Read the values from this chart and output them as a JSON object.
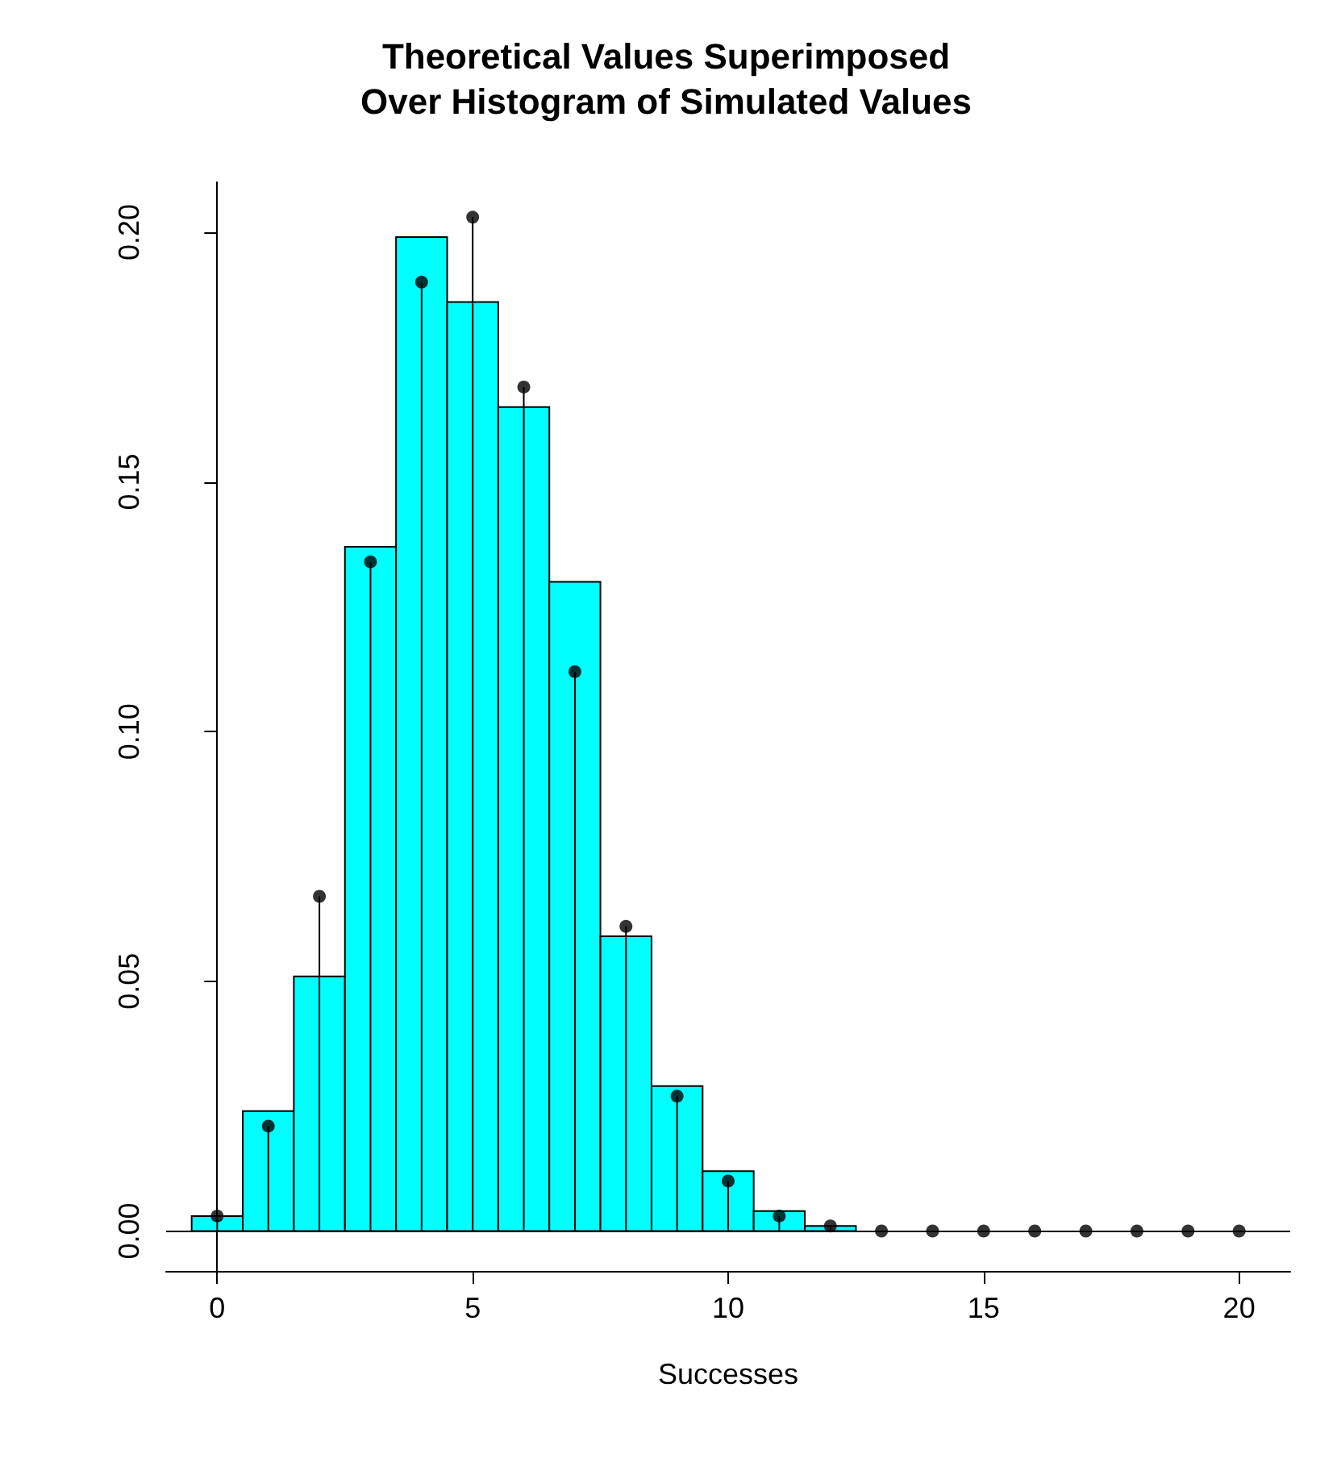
{
  "chart_data": {
    "type": "histogram",
    "title": "Theoretical Values Superimposed\nOver Histogram of Simulated Values",
    "xlabel": "Successes",
    "bins": [
      -0.5,
      0.5,
      1.5,
      2.5,
      3.5,
      4.5,
      5.5,
      6.5,
      7.5,
      8.5,
      9.5,
      10.5,
      11.5,
      12.5
    ],
    "series": [
      {
        "color": "#00ffff",
        "values": [
          0.003,
          0.024,
          0.051,
          0.137,
          0.199,
          0.186,
          0.165,
          0.13,
          0.059,
          0.029,
          0.012,
          0.004,
          0.001
        ]
      },
      {
        "type": "lollipop",
        "color": "#000000",
        "marker": "circle",
        "x": [
          0,
          1,
          2,
          3,
          4,
          5,
          6,
          7,
          8,
          9,
          10,
          11,
          12,
          13,
          14,
          15,
          16,
          17,
          18,
          19,
          20
        ],
        "values": [
          0.003,
          0.021,
          0.067,
          0.134,
          0.19,
          0.203,
          0.169,
          0.112,
          0.061,
          0.027,
          0.01,
          0.003,
          0.001,
          0,
          0,
          0,
          0,
          0,
          0,
          0,
          0
        ]
      }
    ],
    "xlim": [
      -1,
      21
    ],
    "xticks": [
      0,
      5,
      10,
      15,
      20
    ],
    "ylim": [
      -0.008,
      0.21
    ],
    "yticks": [
      {
        "value": 0,
        "label": "0.00"
      },
      0.05,
      {
        "value": 0.1,
        "label": "0.10"
      },
      0.15,
      {
        "value": 0.2,
        "label": "0.20"
      }
    ],
    "ref_lines": [
      {
        "axis": "y",
        "value": 0,
        "color": "#000000"
      }
    ]
  }
}
